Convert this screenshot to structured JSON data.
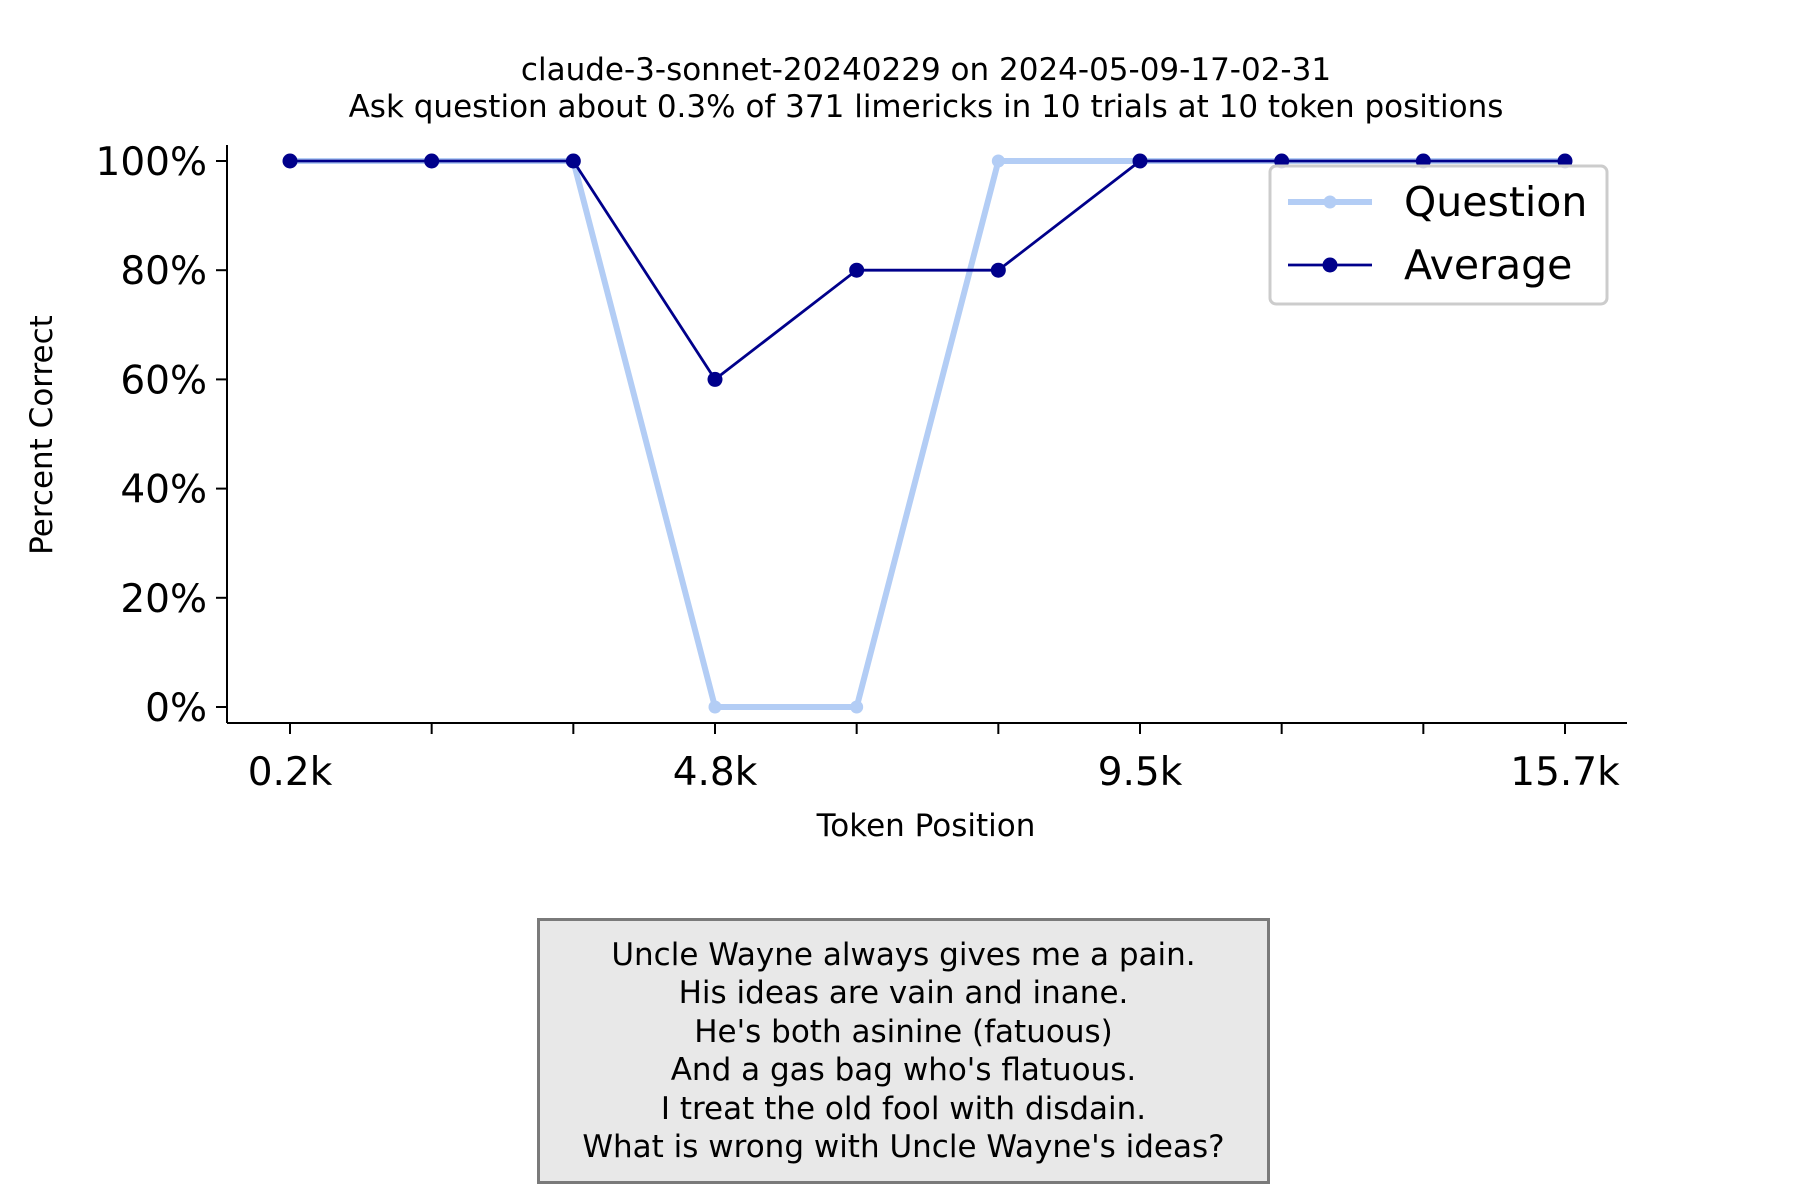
{
  "chart_data": {
    "type": "line",
    "title": "claude-3-sonnet-20240229 on 2024-05-09-17-02-31",
    "subtitle": "Ask question about 0.3% of 371 limericks in 10 trials at 10 token positions",
    "xlabel": "Token Position",
    "ylabel": "Percent Correct",
    "x_tick_labels": [
      "0.2k",
      "",
      "",
      "4.8k",
      "",
      "",
      "9.5k",
      "",
      "",
      "15.7k"
    ],
    "y_tick_labels": [
      "0%",
      "20%",
      "40%",
      "60%",
      "80%",
      "100%"
    ],
    "y_ticks": [
      0,
      20,
      40,
      60,
      80,
      100
    ],
    "ylim": [
      0,
      100
    ],
    "legend_position": "upper-right",
    "series": [
      {
        "name": "Question",
        "color": "#b3cdf5",
        "values": [
          100,
          100,
          100,
          0,
          0,
          100,
          100,
          100,
          100,
          100
        ]
      },
      {
        "name": "Average",
        "color": "#00008b",
        "values": [
          100,
          100,
          100,
          60,
          80,
          80,
          100,
          100,
          100,
          100
        ]
      }
    ]
  },
  "limerick": {
    "lines": [
      "Uncle Wayne always gives me a pain.",
      "His ideas are vain and inane.",
      "He's both asinine (fatuous)",
      "And a gas bag who's flatuous.",
      "I treat the old fool with disdain.",
      "What is wrong with Uncle Wayne's ideas?"
    ]
  }
}
